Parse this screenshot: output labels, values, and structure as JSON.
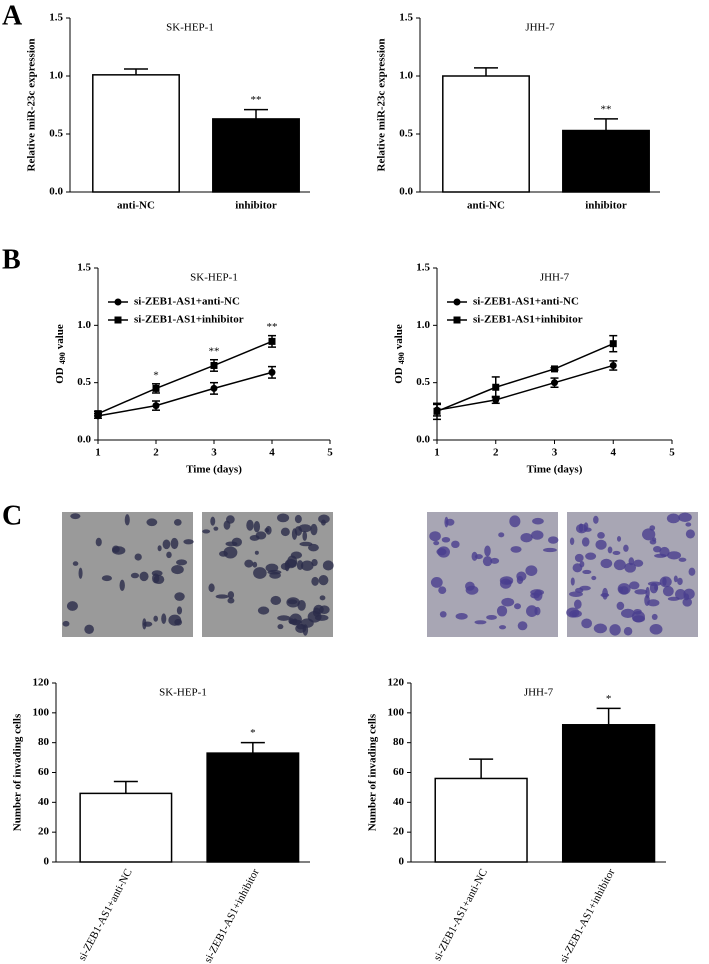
{
  "panel_labels": [
    "A",
    "B",
    "C"
  ],
  "chart_data": [
    {
      "type": "bar",
      "title": "SK-HEP-1",
      "ylabel": "Relative miR-23c expression",
      "categories": [
        "anti-NC",
        "inhibitor"
      ],
      "values": [
        1.01,
        0.63
      ],
      "errors": [
        0.05,
        0.08
      ],
      "colors": [
        "#ffffff",
        "#000000"
      ],
      "significance": [
        null,
        "**"
      ],
      "ylim": [
        0,
        1.5
      ],
      "yticks": [
        {
          "value": 0,
          "label": "0.0"
        },
        0.5,
        {
          "value": 1,
          "label": "1.0"
        },
        1.5
      ]
    },
    {
      "type": "bar",
      "title": "JHH-7",
      "ylabel": "Relative miR-23c expression",
      "categories": [
        "anti-NC",
        "inhibitor"
      ],
      "values": [
        1.0,
        0.53
      ],
      "errors": [
        0.07,
        0.1
      ],
      "colors": [
        "#ffffff",
        "#000000"
      ],
      "significance": [
        null,
        "**"
      ],
      "ylim": [
        0,
        1.5
      ],
      "yticks": [
        {
          "value": 0,
          "label": "0.0"
        },
        0.5,
        {
          "value": 1,
          "label": "1.0"
        },
        1.5
      ]
    },
    {
      "type": "line",
      "title": "SK-HEP-1",
      "ylabel": [
        "OD",
        "490",
        "value"
      ],
      "xlabel": "Time (days)",
      "x": [
        1,
        2,
        3,
        4
      ],
      "legend": "upper left",
      "series": [
        {
          "name": "si-ZEB1-AS1+anti-NC",
          "color": "#000000",
          "marker": "circle",
          "values": [
            0.21,
            0.3,
            0.45,
            0.59
          ],
          "errors": [
            0.02,
            0.04,
            0.05,
            0.05
          ]
        },
        {
          "name": "si-ZEB1-AS1+inhibitor",
          "color": "#000000",
          "marker": "square",
          "values": [
            0.23,
            0.45,
            0.65,
            0.86
          ],
          "errors": [
            0.02,
            0.04,
            0.05,
            0.05
          ]
        }
      ],
      "significance": [
        null,
        "*",
        "**",
        "**"
      ],
      "xlim": [
        1,
        5
      ],
      "xticks": [
        1,
        2,
        3,
        4,
        5
      ],
      "ylim": [
        0,
        1.5
      ],
      "yticks": [
        {
          "value": 0,
          "label": "0.0"
        },
        0.5,
        {
          "value": 1,
          "label": "1.0"
        },
        1.5
      ]
    },
    {
      "type": "line",
      "title": "JHH-7",
      "ylabel": [
        "OD",
        "490",
        "value"
      ],
      "xlabel": "Time (days)",
      "x": [
        1,
        2,
        3,
        4
      ],
      "legend": "upper left",
      "series": [
        {
          "name": "si-ZEB1-AS1+anti-NC",
          "color": "#000000",
          "marker": "circle",
          "values": [
            0.26,
            0.35,
            0.5,
            0.65
          ],
          "errors": [
            0.05,
            0.03,
            0.04,
            0.04
          ]
        },
        {
          "name": "si-ZEB1-AS1+inhibitor",
          "color": "#000000",
          "marker": "square",
          "values": [
            0.25,
            0.46,
            0.62,
            0.84
          ],
          "errors": [
            0.07,
            0.09,
            0.01,
            0.07
          ]
        }
      ],
      "xlim": [
        1,
        5
      ],
      "xticks": [
        1,
        2,
        3,
        4,
        5
      ],
      "ylim": [
        0,
        1.5
      ],
      "yticks": [
        {
          "value": 0,
          "label": "0.0"
        },
        0.5,
        {
          "value": 1,
          "label": "1.0"
        },
        1.5
      ]
    },
    {
      "type": "bar",
      "title": "SK-HEP-1",
      "ylabel": "Number of invading cells",
      "rotate_labels": true,
      "categories": [
        "si-ZEB1-AS1+anti-NC",
        "si-ZEB1-AS1+inhibitor"
      ],
      "values": [
        46,
        73
      ],
      "errors": [
        8,
        7
      ],
      "colors": [
        "#ffffff",
        "#000000"
      ],
      "significance": [
        null,
        "*"
      ],
      "ylim": [
        0,
        120
      ],
      "yticks": [
        0,
        20,
        40,
        60,
        80,
        100,
        120
      ]
    },
    {
      "type": "bar",
      "title": "JHH-7",
      "ylabel": "Number of invading cells",
      "rotate_labels": true,
      "categories": [
        "si-ZEB1-AS1+anti-NC",
        "si-ZEB1-AS1+inhibitor"
      ],
      "values": [
        56,
        92
      ],
      "errors": [
        13,
        11
      ],
      "colors": [
        "#ffffff",
        "#000000"
      ],
      "significance": [
        null,
        "*"
      ],
      "ylim": [
        0,
        120
      ],
      "yticks": [
        0,
        20,
        40,
        60,
        80,
        100,
        120
      ]
    }
  ]
}
